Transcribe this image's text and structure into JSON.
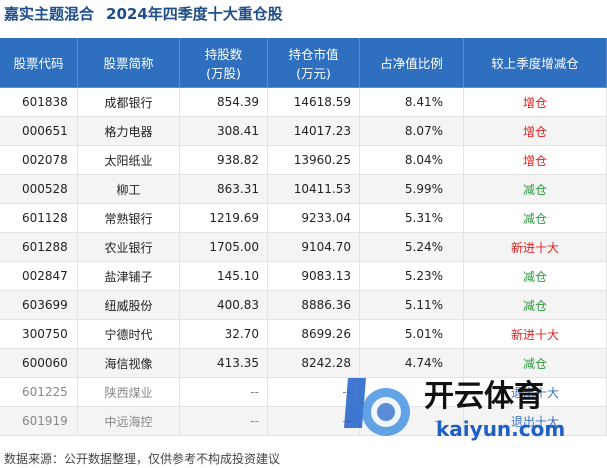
{
  "header": {
    "fund": "嘉实主题混合",
    "title": "2024年四季度十大重仓股"
  },
  "table": {
    "columns": [
      [
        "股票代码"
      ],
      [
        "股票简称"
      ],
      [
        "持股数",
        "(万股)"
      ],
      [
        "持仓市值",
        "(万元)"
      ],
      [
        "占净值比例"
      ],
      [
        "较上季度增减仓"
      ]
    ],
    "rows": [
      [
        "601838",
        "成都银行",
        "854.39",
        "14618.59",
        "8.41%",
        "增仓"
      ],
      [
        "000651",
        "格力电器",
        "308.41",
        "14017.23",
        "8.07%",
        "增仓"
      ],
      [
        "002078",
        "太阳纸业",
        "938.82",
        "13960.25",
        "8.04%",
        "增仓"
      ],
      [
        "000528",
        "柳工",
        "863.31",
        "10411.53",
        "5.99%",
        "减仓"
      ],
      [
        "601128",
        "常熟银行",
        "1219.69",
        "9233.04",
        "5.31%",
        "减仓"
      ],
      [
        "601288",
        "农业银行",
        "1705.00",
        "9104.70",
        "5.24%",
        "新进十大"
      ],
      [
        "002847",
        "盐津铺子",
        "145.10",
        "9083.13",
        "5.23%",
        "减仓"
      ],
      [
        "603699",
        "纽威股份",
        "400.83",
        "8886.36",
        "5.11%",
        "减仓"
      ],
      [
        "300750",
        "宁德时代",
        "32.70",
        "8699.26",
        "5.01%",
        "新进十大"
      ],
      [
        "600060",
        "海信视像",
        "413.35",
        "8242.28",
        "4.74%",
        "减仓"
      ],
      [
        "601225",
        "陕西煤业",
        "--",
        "--",
        "--",
        "退出十大"
      ],
      [
        "601919",
        "中远海控",
        "--",
        "--",
        "--",
        "退出十大"
      ]
    ]
  },
  "footer": "数据来源：公开数据整理，仅供参考不构成投资建议",
  "watermark": {
    "brand": "开云体育",
    "site": "kaiyun.com"
  }
}
